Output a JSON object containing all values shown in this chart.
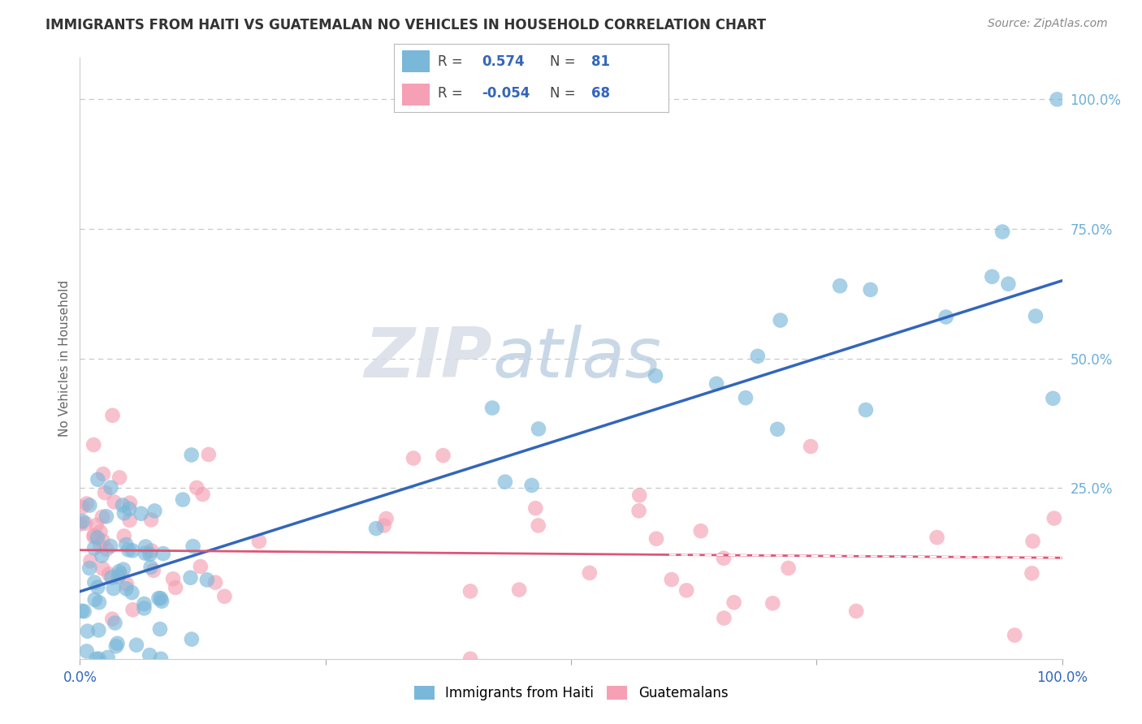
{
  "title": "IMMIGRANTS FROM HAITI VS GUATEMALAN NO VEHICLES IN HOUSEHOLD CORRELATION CHART",
  "source": "Source: ZipAtlas.com",
  "ylabel": "No Vehicles in Household",
  "xlim": [
    0.0,
    100.0
  ],
  "ylim": [
    -8.0,
    108.0
  ],
  "series1_color": "#7ab8d9",
  "series2_color": "#f5a0b5",
  "trend1_color": "#3366bb",
  "trend2_color": "#dd5577",
  "watermark_zip": "ZIP",
  "watermark_atlas": "atlas",
  "background_color": "#ffffff",
  "grid_color": "#c8c8c8",
  "title_color": "#333333",
  "source_color": "#888888",
  "right_tick_color": "#6dafd7",
  "left_label_color": "#666666",
  "legend_r_color": "#3366bb",
  "legend_n_color": "#3366bb",
  "haiti_trend_y0": 5.0,
  "haiti_trend_y1": 65.0,
  "guat_trend_y0": 13.0,
  "guat_trend_y1": 11.5,
  "dot_size": 180,
  "dot_alpha": 0.65
}
